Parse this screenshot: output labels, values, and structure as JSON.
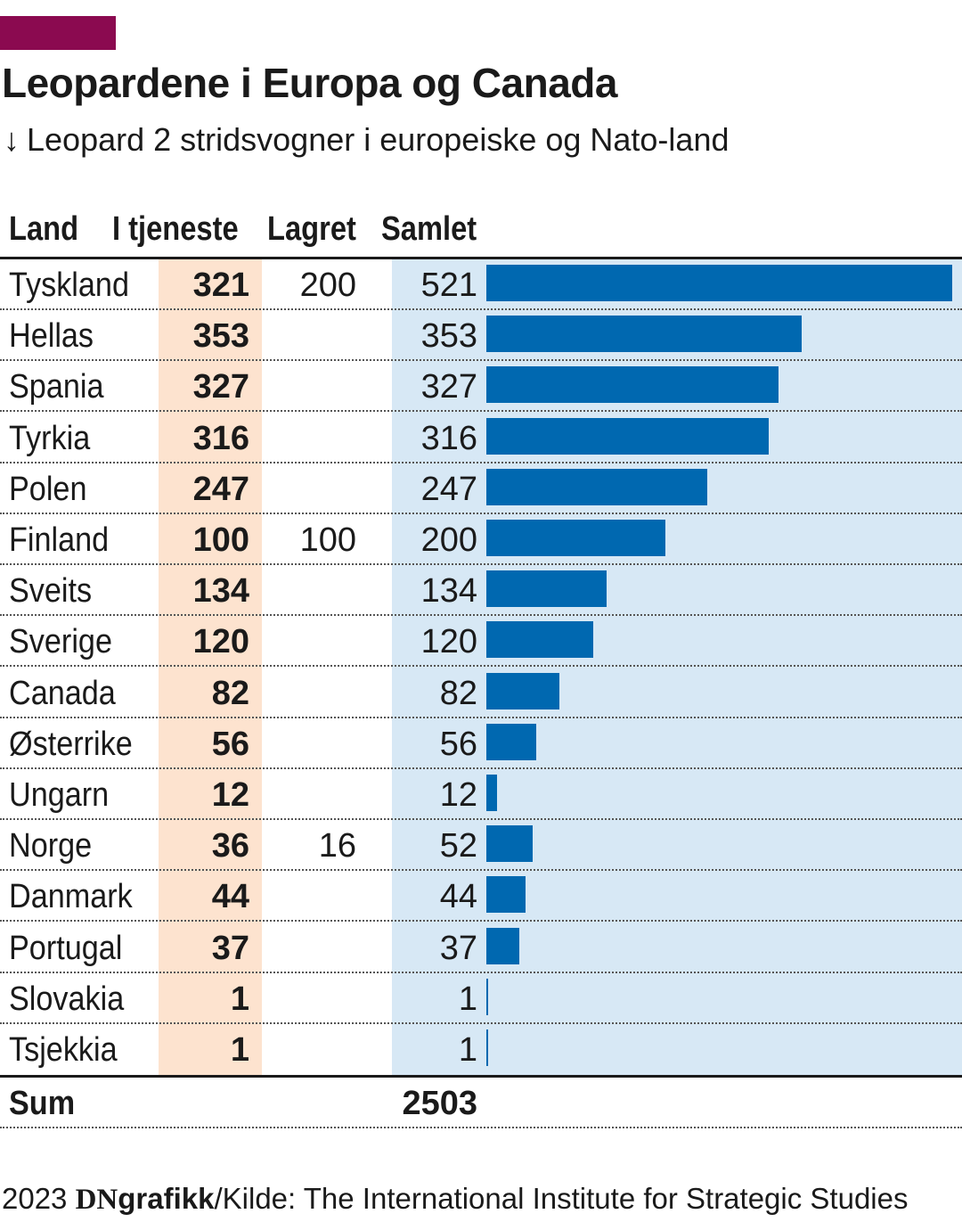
{
  "colors": {
    "accent": "#8b0a50",
    "bar": "#0068b0",
    "service_column_bg": "#fde3cf",
    "total_column_bg": "#d7e8f5",
    "text": "#1a1a1a"
  },
  "title": "Leopardene i Europa og Canada",
  "subtitle": {
    "arrow": "↓",
    "text": "Leopard 2 stridsvogner i europeiske og Nato-land"
  },
  "headers": {
    "land": "Land",
    "service": "I tjeneste",
    "stored": "Lagret",
    "total": "Samlet"
  },
  "rows": [
    {
      "land": "Tyskland",
      "service": "321",
      "stored": "200",
      "total": "521"
    },
    {
      "land": "Hellas",
      "service": "353",
      "stored": "",
      "total": "353"
    },
    {
      "land": "Spania",
      "service": "327",
      "stored": "",
      "total": "327"
    },
    {
      "land": "Tyrkia",
      "service": "316",
      "stored": "",
      "total": "316"
    },
    {
      "land": "Polen",
      "service": "247",
      "stored": "",
      "total": "247"
    },
    {
      "land": "Finland",
      "service": "100",
      "stored": "100",
      "total": "200"
    },
    {
      "land": "Sveits",
      "service": "134",
      "stored": "",
      "total": "134"
    },
    {
      "land": "Sverige",
      "service": "120",
      "stored": "",
      "total": "120"
    },
    {
      "land": "Canada",
      "service": "82",
      "stored": "",
      "total": "82"
    },
    {
      "land": "Østerrike",
      "service": "56",
      "stored": "",
      "total": "56"
    },
    {
      "land": "Ungarn",
      "service": "12",
      "stored": "",
      "total": "12"
    },
    {
      "land": "Norge",
      "service": "36",
      "stored": "16",
      "total": "52"
    },
    {
      "land": "Danmark",
      "service": "44",
      "stored": "",
      "total": "44"
    },
    {
      "land": "Portugal",
      "service": "37",
      "stored": "",
      "total": "37"
    },
    {
      "land": "Slovakia",
      "service": "1",
      "stored": "",
      "total": "1"
    },
    {
      "land": "Tsjekkia",
      "service": "1",
      "stored": "",
      "total": "1"
    }
  ],
  "sum": {
    "label": "Sum",
    "total": "2503"
  },
  "footer": {
    "year": "2023",
    "brand_dn": "DN",
    "brand_grafikk": "grafikk",
    "source": "/Kilde: The International Institute for Strategic Studies"
  },
  "chart_data": {
    "type": "bar",
    "orientation": "horizontal",
    "categories": [
      "Tyskland",
      "Hellas",
      "Spania",
      "Tyrkia",
      "Polen",
      "Finland",
      "Sveits",
      "Sverige",
      "Canada",
      "Østerrike",
      "Ungarn",
      "Norge",
      "Danmark",
      "Portugal",
      "Slovakia",
      "Tsjekkia"
    ],
    "series": [
      {
        "name": "I tjeneste",
        "values": [
          321,
          353,
          327,
          316,
          247,
          100,
          134,
          120,
          82,
          56,
          12,
          36,
          44,
          37,
          1,
          1
        ]
      },
      {
        "name": "Lagret",
        "values": [
          200,
          null,
          null,
          null,
          null,
          100,
          null,
          null,
          null,
          null,
          null,
          16,
          null,
          null,
          null,
          null
        ]
      },
      {
        "name": "Samlet",
        "values": [
          521,
          353,
          327,
          316,
          247,
          200,
          134,
          120,
          82,
          56,
          12,
          52,
          44,
          37,
          1,
          1
        ]
      }
    ],
    "bar_series": "Samlet",
    "xlim": [
      0,
      521
    ],
    "title": "Leopardene i Europa og Canada",
    "subtitle": "Leopard 2 stridsvogner i europeiske og Nato-land",
    "grid": false
  }
}
